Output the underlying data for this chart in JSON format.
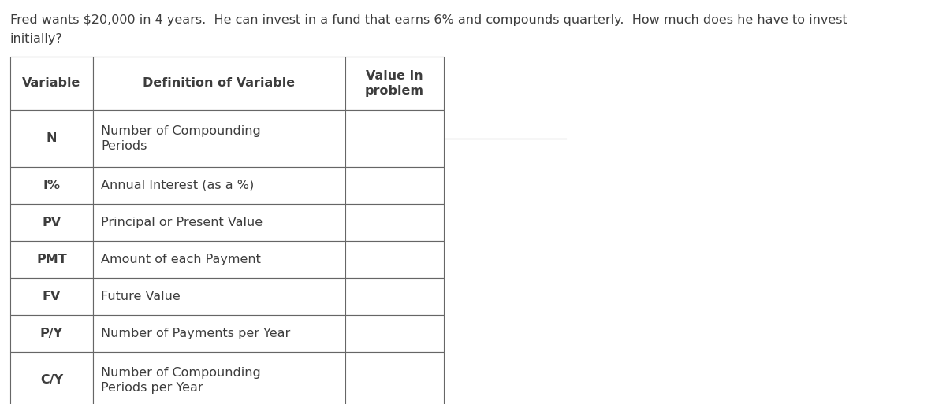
{
  "question_line1": "Fred wants $20,000 in 4 years.  He can invest in a fund that earns 6% and compounds quarterly.  How much does he have to invest",
  "question_line2": "initially?",
  "table_headers": [
    "Variable",
    "Definition of Variable",
    "Value in\nproblem"
  ],
  "rows": [
    {
      "var": "N",
      "def": "Number of Compounding\nPeriods"
    },
    {
      "var": "I%",
      "def": "Annual Interest (as a %)"
    },
    {
      "var": "PV",
      "def": "Principal or Present Value"
    },
    {
      "var": "PMT",
      "def": "Amount of each Payment"
    },
    {
      "var": "FV",
      "def": "Future Value"
    },
    {
      "var": "P/Y",
      "def": "Number of Payments per Year"
    },
    {
      "var": "C/Y",
      "def": "Number of Compounding\nPeriods per Year"
    }
  ],
  "text_color": "#3d3d3d",
  "line_color": "#666666",
  "bg_color": "#ffffff",
  "font_size": 11.5,
  "fig_width": 12.0,
  "fig_height": 5.13,
  "dpi": 100
}
